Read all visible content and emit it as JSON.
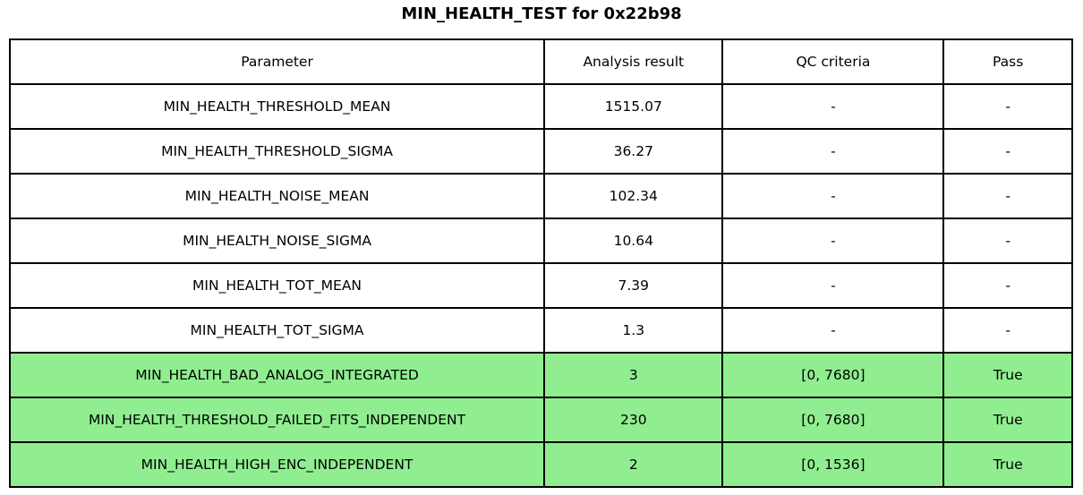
{
  "colors": {
    "background": "#FFFFFF",
    "border": "#000000",
    "text": "#000000",
    "pass_row_bg": "#90EE90"
  },
  "chart_data": {
    "type": "table",
    "title": "MIN_HEALTH_TEST for 0x22b98",
    "columns": [
      "Parameter",
      "Analysis result",
      "QC criteria",
      "Pass"
    ],
    "rows": [
      [
        "MIN_HEALTH_THRESHOLD_MEAN",
        "1515.07",
        "-",
        "-"
      ],
      [
        "MIN_HEALTH_THRESHOLD_SIGMA",
        "36.27",
        "-",
        "-"
      ],
      [
        "MIN_HEALTH_NOISE_MEAN",
        "102.34",
        "-",
        "-"
      ],
      [
        "MIN_HEALTH_NOISE_SIGMA",
        "10.64",
        "-",
        "-"
      ],
      [
        "MIN_HEALTH_TOT_MEAN",
        "7.39",
        "-",
        "-"
      ],
      [
        "MIN_HEALTH_TOT_SIGMA",
        "1.3",
        "-",
        "-"
      ],
      [
        "MIN_HEALTH_BAD_ANALOG_INTEGRATED",
        "3",
        "[0, 7680]",
        "True"
      ],
      [
        "MIN_HEALTH_THRESHOLD_FAILED_FITS_INDEPENDENT",
        "230",
        "[0, 7680]",
        "True"
      ],
      [
        "MIN_HEALTH_HIGH_ENC_INDEPENDENT",
        "2",
        "[0, 1536]",
        "True"
      ]
    ],
    "highlighted_rows": [
      6,
      7,
      8
    ],
    "highlight_color": "#90EE90",
    "legend_position": "none",
    "grid": "full-cell-borders"
  }
}
